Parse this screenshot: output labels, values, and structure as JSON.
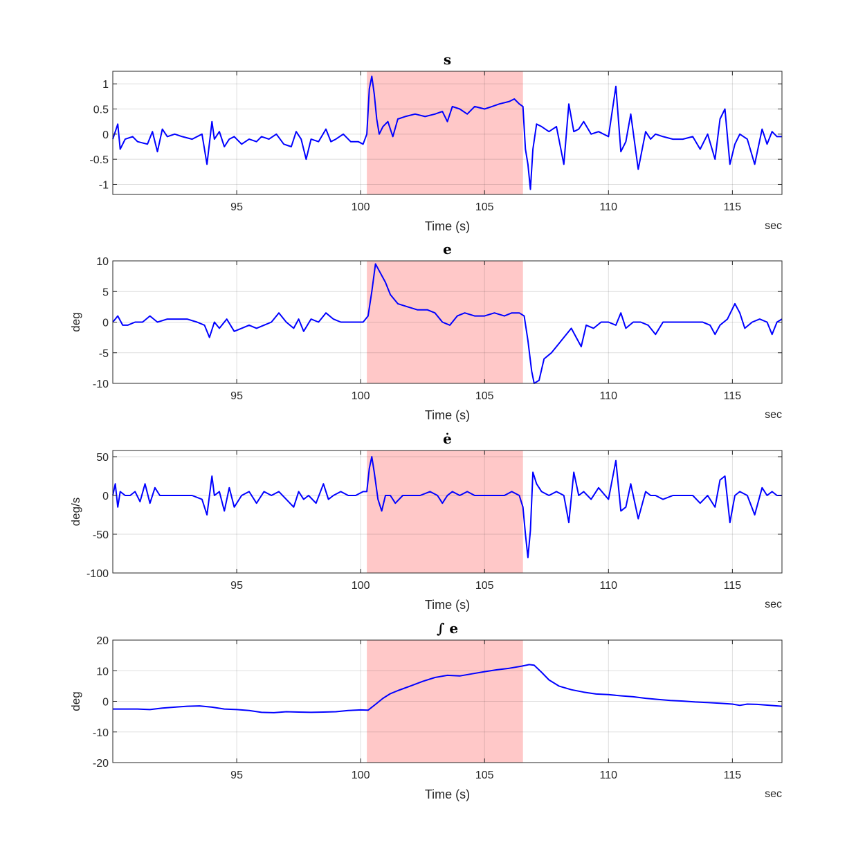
{
  "chart_data": [
    {
      "type": "line",
      "title": "s",
      "xlabel": "Time (s)",
      "x_unit_label": "sec",
      "ylabel": "",
      "xlim": [
        90,
        117
      ],
      "ylim": [
        -1.2,
        1.25
      ],
      "xticks": [
        95,
        100,
        105,
        110,
        115
      ],
      "yticks": [
        -1,
        -0.5,
        0,
        0.5,
        1
      ],
      "grid": true,
      "highlight_interval": [
        100.25,
        106.55
      ],
      "line_color": "#0000ff",
      "highlight_color": "#ffc8c8",
      "series": [
        {
          "x": [
            90.0,
            90.2,
            90.3,
            90.5,
            90.8,
            91.0,
            91.4,
            91.6,
            91.8,
            92.0,
            92.2,
            92.5,
            92.8,
            93.2,
            93.6,
            93.8,
            94.0,
            94.1,
            94.3,
            94.5,
            94.7,
            94.9,
            95.2,
            95.5,
            95.8,
            96.0,
            96.3,
            96.6,
            96.9,
            97.2,
            97.4,
            97.6,
            97.8,
            98.0,
            98.3,
            98.6,
            98.8,
            99.0,
            99.3,
            99.6,
            99.9,
            100.1,
            100.25,
            100.35,
            100.45,
            100.55,
            100.65,
            100.75,
            100.9,
            101.1,
            101.3,
            101.5,
            101.8,
            102.2,
            102.6,
            103.0,
            103.3,
            103.5,
            103.7,
            104.0,
            104.3,
            104.6,
            105.0,
            105.3,
            105.6,
            106.0,
            106.2,
            106.4,
            106.55,
            106.65,
            106.75,
            106.85,
            106.95,
            107.1,
            107.3,
            107.6,
            107.9,
            108.2,
            108.4,
            108.6,
            108.8,
            109.0,
            109.3,
            109.6,
            110.0,
            110.3,
            110.5,
            110.7,
            110.9,
            111.2,
            111.5,
            111.7,
            111.9,
            112.2,
            112.6,
            113.0,
            113.4,
            113.7,
            114.0,
            114.3,
            114.5,
            114.7,
            114.9,
            115.1,
            115.3,
            115.6,
            115.9,
            116.2,
            116.4,
            116.6,
            116.8,
            117.0
          ],
          "y": [
            -0.1,
            0.2,
            -0.3,
            -0.1,
            -0.05,
            -0.15,
            -0.2,
            0.05,
            -0.35,
            0.1,
            -0.05,
            0.0,
            -0.05,
            -0.1,
            0.0,
            -0.6,
            0.25,
            -0.1,
            0.05,
            -0.25,
            -0.1,
            -0.05,
            -0.2,
            -0.1,
            -0.15,
            -0.05,
            -0.1,
            0.0,
            -0.2,
            -0.25,
            0.05,
            -0.1,
            -0.5,
            -0.1,
            -0.15,
            0.1,
            -0.15,
            -0.1,
            0.0,
            -0.15,
            -0.15,
            -0.2,
            0.0,
            0.9,
            1.15,
            0.8,
            0.3,
            0.0,
            0.15,
            0.25,
            -0.05,
            0.3,
            0.35,
            0.4,
            0.35,
            0.4,
            0.45,
            0.25,
            0.55,
            0.5,
            0.4,
            0.55,
            0.5,
            0.55,
            0.6,
            0.65,
            0.7,
            0.6,
            0.55,
            -0.3,
            -0.6,
            -1.1,
            -0.3,
            0.2,
            0.15,
            0.05,
            0.15,
            -0.6,
            0.6,
            0.05,
            0.1,
            0.25,
            0.0,
            0.05,
            -0.05,
            0.95,
            -0.35,
            -0.15,
            0.4,
            -0.7,
            0.05,
            -0.1,
            0.0,
            -0.05,
            -0.1,
            -0.1,
            -0.05,
            -0.3,
            0.0,
            -0.5,
            0.3,
            0.5,
            -0.6,
            -0.2,
            0.0,
            -0.1,
            -0.6,
            0.1,
            -0.2,
            0.05,
            -0.05,
            -0.05
          ]
        }
      ]
    },
    {
      "type": "line",
      "title": "e",
      "xlabel": "Time (s)",
      "x_unit_label": "sec",
      "ylabel": "deg",
      "xlim": [
        90,
        117
      ],
      "ylim": [
        -10,
        10
      ],
      "xticks": [
        95,
        100,
        105,
        110,
        115
      ],
      "yticks": [
        -10,
        -5,
        0,
        5,
        10
      ],
      "grid": true,
      "highlight_interval": [
        100.25,
        106.55
      ],
      "line_color": "#0000ff",
      "highlight_color": "#ffc8c8",
      "series": [
        {
          "x": [
            90.0,
            90.2,
            90.4,
            90.6,
            90.9,
            91.2,
            91.5,
            91.8,
            92.2,
            92.6,
            93.0,
            93.4,
            93.7,
            93.9,
            94.1,
            94.3,
            94.6,
            94.9,
            95.2,
            95.5,
            95.8,
            96.1,
            96.4,
            96.7,
            97.0,
            97.3,
            97.5,
            97.7,
            98.0,
            98.3,
            98.6,
            98.9,
            99.2,
            99.5,
            99.8,
            100.1,
            100.3,
            100.45,
            100.6,
            100.8,
            101.0,
            101.2,
            101.5,
            101.9,
            102.3,
            102.7,
            103.0,
            103.3,
            103.6,
            103.9,
            104.2,
            104.6,
            105.0,
            105.4,
            105.8,
            106.1,
            106.4,
            106.6,
            106.75,
            106.9,
            107.0,
            107.2,
            107.4,
            107.7,
            108.0,
            108.3,
            108.5,
            108.7,
            108.9,
            109.1,
            109.4,
            109.7,
            110.0,
            110.3,
            110.5,
            110.7,
            111.0,
            111.3,
            111.6,
            111.9,
            112.2,
            112.6,
            113.0,
            113.4,
            113.8,
            114.1,
            114.3,
            114.5,
            114.8,
            115.1,
            115.3,
            115.5,
            115.8,
            116.1,
            116.4,
            116.6,
            116.8,
            117.0
          ],
          "y": [
            0.0,
            1.0,
            -0.5,
            -0.5,
            0.0,
            0.0,
            1.0,
            0.0,
            0.5,
            0.5,
            0.5,
            0.0,
            -0.5,
            -2.5,
            0.0,
            -1.0,
            0.5,
            -1.5,
            -1.0,
            -0.5,
            -1.0,
            -0.5,
            0.0,
            1.5,
            0.0,
            -1.0,
            0.5,
            -1.5,
            0.5,
            0.0,
            1.5,
            0.5,
            0.0,
            0.0,
            0.0,
            0.0,
            1.0,
            5.0,
            9.5,
            8.0,
            6.5,
            4.5,
            3.0,
            2.5,
            2.0,
            2.0,
            1.5,
            0.0,
            -0.5,
            1.0,
            1.5,
            1.0,
            1.0,
            1.5,
            1.0,
            1.5,
            1.5,
            1.0,
            -3.0,
            -8.0,
            -10.0,
            -9.5,
            -6.0,
            -5.0,
            -3.5,
            -2.0,
            -1.0,
            -2.5,
            -4.0,
            -0.5,
            -1.0,
            0.0,
            0.0,
            -0.5,
            1.5,
            -1.0,
            0.0,
            0.0,
            -0.5,
            -2.0,
            0.0,
            0.0,
            0.0,
            0.0,
            0.0,
            -0.5,
            -2.0,
            -0.5,
            0.5,
            3.0,
            1.5,
            -1.0,
            0.0,
            0.5,
            0.0,
            -2.0,
            0.0,
            0.5
          ]
        }
      ]
    },
    {
      "type": "line",
      "title": "ė",
      "xlabel": "Time (s)",
      "x_unit_label": "sec",
      "ylabel": "deg/s",
      "xlim": [
        90,
        117
      ],
      "ylim": [
        -100,
        58
      ],
      "xticks": [
        95,
        100,
        105,
        110,
        115
      ],
      "yticks": [
        -100,
        -50,
        0,
        50
      ],
      "grid": true,
      "highlight_interval": [
        100.25,
        106.55
      ],
      "line_color": "#0000ff",
      "highlight_color": "#ffc8c8",
      "series": [
        {
          "x": [
            90.0,
            90.1,
            90.2,
            90.3,
            90.5,
            90.7,
            90.9,
            91.1,
            91.3,
            91.5,
            91.7,
            91.9,
            92.1,
            92.4,
            92.8,
            93.2,
            93.6,
            93.8,
            94.0,
            94.1,
            94.3,
            94.5,
            94.7,
            94.9,
            95.2,
            95.5,
            95.8,
            96.1,
            96.4,
            96.7,
            97.0,
            97.3,
            97.5,
            97.7,
            97.9,
            98.2,
            98.5,
            98.7,
            98.9,
            99.2,
            99.5,
            99.8,
            100.1,
            100.25,
            100.35,
            100.45,
            100.55,
            100.7,
            100.85,
            101.0,
            101.2,
            101.4,
            101.7,
            102.0,
            102.4,
            102.8,
            103.1,
            103.3,
            103.5,
            103.7,
            104.0,
            104.3,
            104.6,
            105.0,
            105.4,
            105.8,
            106.1,
            106.4,
            106.55,
            106.65,
            106.75,
            106.85,
            106.95,
            107.1,
            107.3,
            107.6,
            107.9,
            108.2,
            108.4,
            108.6,
            108.8,
            109.0,
            109.3,
            109.6,
            110.0,
            110.3,
            110.5,
            110.7,
            110.9,
            111.2,
            111.5,
            111.7,
            111.9,
            112.2,
            112.6,
            113.0,
            113.4,
            113.7,
            114.0,
            114.3,
            114.5,
            114.7,
            114.9,
            115.1,
            115.3,
            115.6,
            115.9,
            116.2,
            116.4,
            116.6,
            116.8,
            117.0
          ],
          "y": [
            0.0,
            15.0,
            -15.0,
            5.0,
            0.0,
            0.0,
            5.0,
            -8.0,
            15.0,
            -10.0,
            10.0,
            0.0,
            0.0,
            0.0,
            0.0,
            0.0,
            -5.0,
            -25.0,
            25.0,
            0.0,
            5.0,
            -20.0,
            10.0,
            -15.0,
            0.0,
            5.0,
            -10.0,
            5.0,
            0.0,
            5.0,
            -5.0,
            -15.0,
            5.0,
            -5.0,
            0.0,
            -10.0,
            15.0,
            -5.0,
            0.0,
            5.0,
            0.0,
            0.0,
            5.0,
            5.0,
            35.0,
            50.0,
            30.0,
            -5.0,
            -20.0,
            0.0,
            0.0,
            -10.0,
            0.0,
            0.0,
            0.0,
            5.0,
            0.0,
            -10.0,
            0.0,
            5.0,
            0.0,
            5.0,
            0.0,
            0.0,
            0.0,
            0.0,
            5.0,
            0.0,
            -15.0,
            -50.0,
            -80.0,
            -45.0,
            30.0,
            15.0,
            5.0,
            0.0,
            5.0,
            0.0,
            -35.0,
            30.0,
            0.0,
            5.0,
            -5.0,
            10.0,
            -5.0,
            45.0,
            -20.0,
            -15.0,
            15.0,
            -30.0,
            5.0,
            0.0,
            0.0,
            -5.0,
            0.0,
            0.0,
            0.0,
            -10.0,
            0.0,
            -15.0,
            20.0,
            25.0,
            -35.0,
            0.0,
            5.0,
            0.0,
            -25.0,
            10.0,
            0.0,
            5.0,
            0.0,
            0.0
          ]
        }
      ]
    },
    {
      "type": "line",
      "title": "∫ e",
      "xlabel": "Time (s)",
      "x_unit_label": "sec",
      "ylabel": "deg",
      "xlim": [
        90,
        117
      ],
      "ylim": [
        -20,
        20
      ],
      "xticks": [
        95,
        100,
        105,
        110,
        115
      ],
      "yticks": [
        -20,
        -10,
        0,
        10,
        20
      ],
      "grid": true,
      "highlight_interval": [
        100.25,
        106.55
      ],
      "line_color": "#0000ff",
      "highlight_color": "#ffc8c8",
      "series": [
        {
          "x": [
            90.0,
            91.0,
            91.5,
            92.0,
            92.5,
            93.0,
            93.5,
            94.0,
            94.5,
            95.0,
            95.5,
            96.0,
            96.5,
            97.0,
            97.5,
            98.0,
            98.5,
            99.0,
            99.5,
            100.0,
            100.3,
            100.6,
            100.9,
            101.2,
            101.5,
            102.0,
            102.5,
            103.0,
            103.5,
            104.0,
            104.5,
            105.0,
            105.5,
            106.0,
            106.5,
            106.8,
            107.0,
            107.3,
            107.6,
            108.0,
            108.5,
            109.0,
            109.5,
            110.0,
            110.5,
            111.0,
            111.5,
            112.0,
            112.5,
            113.0,
            113.5,
            114.0,
            114.5,
            115.0,
            115.3,
            115.6,
            116.0,
            116.5,
            117.0
          ],
          "y": [
            -2.5,
            -2.5,
            -2.7,
            -2.2,
            -1.9,
            -1.6,
            -1.5,
            -1.9,
            -2.5,
            -2.7,
            -3.0,
            -3.6,
            -3.7,
            -3.4,
            -3.5,
            -3.6,
            -3.5,
            -3.4,
            -3.0,
            -2.8,
            -2.9,
            -1.0,
            1.0,
            2.5,
            3.5,
            5.0,
            6.5,
            7.8,
            8.5,
            8.3,
            9.0,
            9.7,
            10.3,
            10.8,
            11.5,
            12.0,
            11.8,
            9.5,
            7.0,
            5.0,
            3.8,
            3.0,
            2.4,
            2.2,
            1.8,
            1.5,
            1.0,
            0.6,
            0.3,
            0.1,
            -0.2,
            -0.4,
            -0.6,
            -0.9,
            -1.3,
            -0.9,
            -1.0,
            -1.3,
            -1.6
          ]
        }
      ]
    }
  ]
}
